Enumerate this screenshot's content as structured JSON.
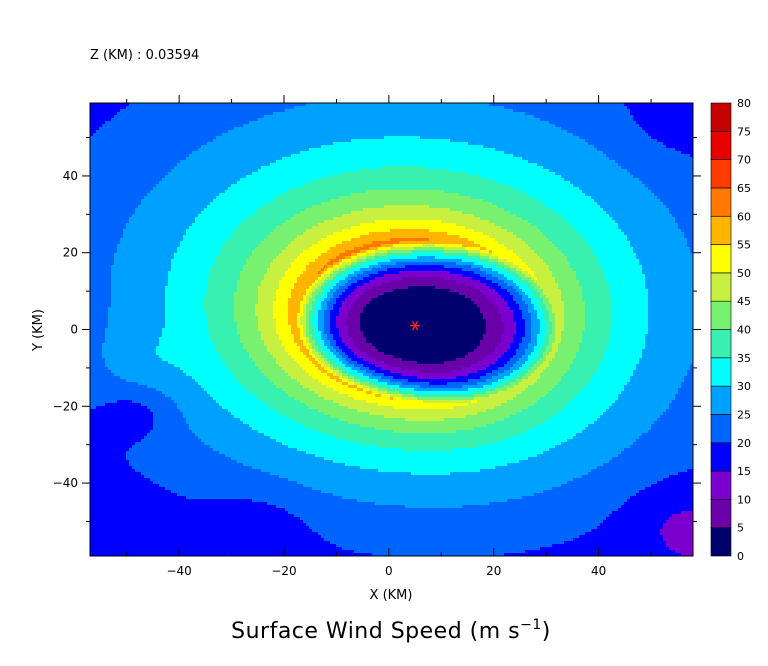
{
  "chart_data": {
    "type": "heatmap",
    "header_label": "Z (KM) : 0.03594",
    "title": "Surface Wind Speed (m s",
    "title_sup": "−1",
    "title_end": ")",
    "xlabel": "X (KM)",
    "ylabel": "Y (KM)",
    "xlim": [
      -57,
      58
    ],
    "ylim": [
      -59,
      59
    ],
    "x_ticks": [
      -40,
      -20,
      0,
      20,
      40
    ],
    "x_tick_labels": [
      "−40",
      "−20",
      "0",
      "20",
      "40"
    ],
    "y_ticks": [
      -40,
      -20,
      0,
      20,
      40
    ],
    "y_tick_labels": [
      "−40",
      "−20",
      "0",
      "20",
      "40"
    ],
    "colorbar": {
      "levels": [
        0,
        5,
        10,
        15,
        20,
        25,
        30,
        35,
        40,
        45,
        50,
        55,
        60,
        65,
        70,
        75,
        80
      ],
      "level_labels": [
        "0",
        "5",
        "10",
        "15",
        "20",
        "25",
        "30",
        "35",
        "40",
        "45",
        "50",
        "55",
        "60",
        "65",
        "70",
        "75",
        "80"
      ],
      "colors": [
        "#00006e",
        "#6a00a8",
        "#7b00d0",
        "#0000ff",
        "#0064ff",
        "#00a0ff",
        "#00ffff",
        "#38f0b0",
        "#78f070",
        "#c8f040",
        "#ffff00",
        "#ffb400",
        "#ff7800",
        "#ff3c00",
        "#e60000",
        "#c40000"
      ]
    },
    "storm_center": {
      "x": 5,
      "y": 1
    },
    "grid": false
  }
}
